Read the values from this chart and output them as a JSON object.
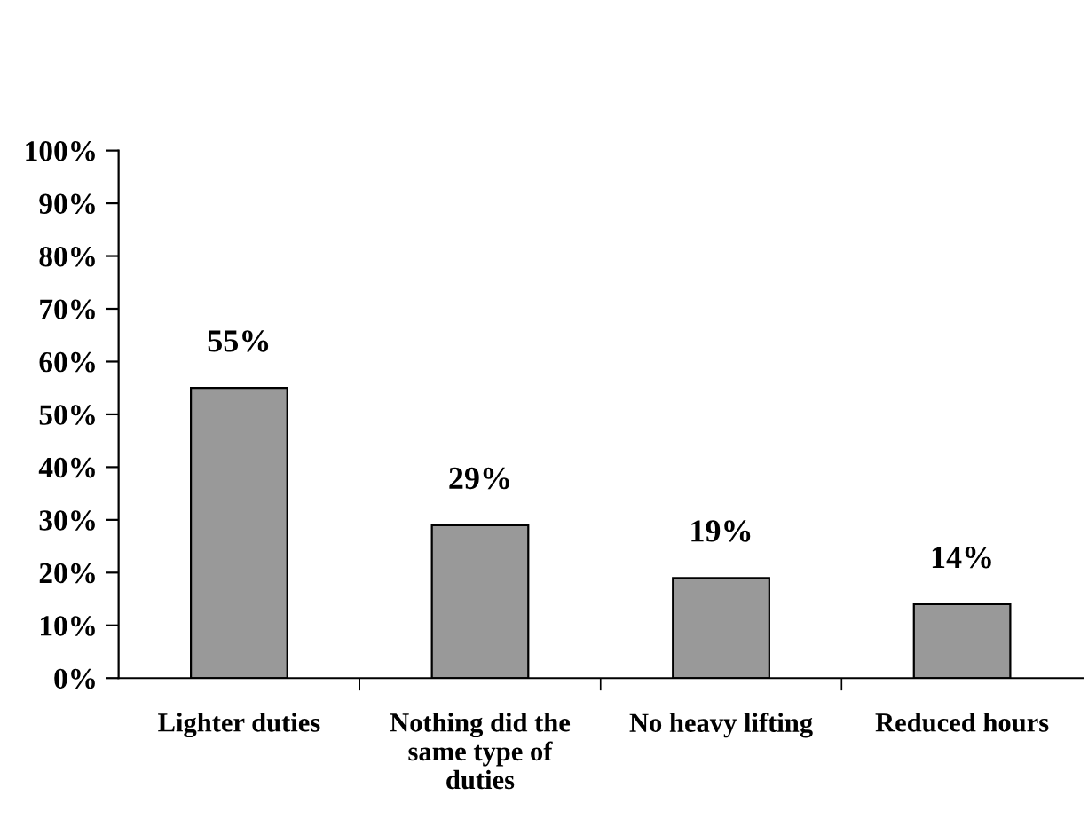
{
  "chart_data": {
    "type": "bar",
    "categories": [
      "Lighter duties",
      "Nothing did the\nsame type of\nduties",
      "No heavy lifting",
      "Reduced hours"
    ],
    "values": [
      55,
      29,
      19,
      14
    ],
    "value_labels": [
      "55%",
      "29%",
      "19%",
      "14%"
    ],
    "color": "#999999",
    "ylim": [
      0,
      100
    ],
    "yticks": [
      {
        "value": 0,
        "label": "0%"
      },
      {
        "value": 10,
        "label": "10%"
      },
      {
        "value": 20,
        "label": "20%"
      },
      {
        "value": 30,
        "label": "30%"
      },
      {
        "value": 40,
        "label": "40%"
      },
      {
        "value": 50,
        "label": "50%"
      },
      {
        "value": 60,
        "label": "60%"
      },
      {
        "value": 70,
        "label": "70%"
      },
      {
        "value": 80,
        "label": "80%"
      },
      {
        "value": 90,
        "label": "90%"
      },
      {
        "value": 100,
        "label": "100%"
      }
    ],
    "grid": false,
    "legend": false
  }
}
